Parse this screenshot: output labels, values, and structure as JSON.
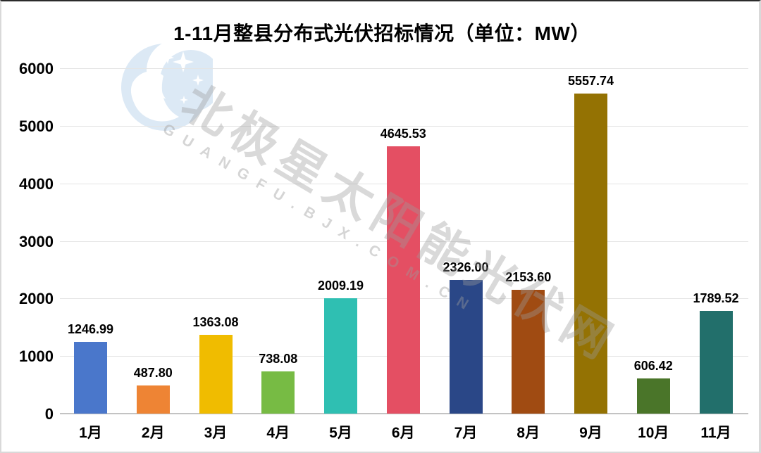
{
  "page": {
    "title": "1-11月整县分布式光伏招标情况（单位：MW）"
  },
  "chart_data": {
    "type": "bar",
    "title": "1-11月整县分布式光伏招标情况（单位：MW）",
    "unit": "MW",
    "categories": [
      "1月",
      "2月",
      "3月",
      "4月",
      "5月",
      "6月",
      "7月",
      "8月",
      "9月",
      "10月",
      "11月"
    ],
    "values": [
      1246.99,
      487.8,
      1363.08,
      738.08,
      2009.19,
      4645.53,
      2326.0,
      2153.6,
      5557.74,
      606.42,
      1789.52
    ],
    "value_labels": [
      "1246.99",
      "487.80",
      "1363.08",
      "738.08",
      "2009.19",
      "4645.53",
      "2326.00",
      "2153.60",
      "5557.74",
      "606.42",
      "1789.52"
    ],
    "bar_colors": [
      "#4a77cb",
      "#ee8434",
      "#f0bc00",
      "#77bb44",
      "#2fbfb2",
      "#e44f63",
      "#2a4787",
      "#a04b12",
      "#947203",
      "#4a7529",
      "#226f6b"
    ],
    "ylim": [
      0,
      6000
    ],
    "yticks": [
      0,
      1000,
      2000,
      3000,
      4000,
      5000,
      6000
    ],
    "ytick_labels": [
      "0",
      "1000",
      "2000",
      "3000",
      "4000",
      "5000",
      "6000"
    ],
    "xlabel": "",
    "ylabel": "",
    "grid": true,
    "legend": false
  },
  "watermark": {
    "logo": "polar-star-moon-logo",
    "text": "北极星太阳能光伏网",
    "subtext": "GUANGFU.BJX.COM.CN"
  },
  "colors": {
    "grid": "#e4e4e4",
    "axis_line": "#c3c3c3",
    "text": "#000000",
    "logo_blue": "#dce9f5",
    "watermark_gray": "#9b9b9b"
  }
}
